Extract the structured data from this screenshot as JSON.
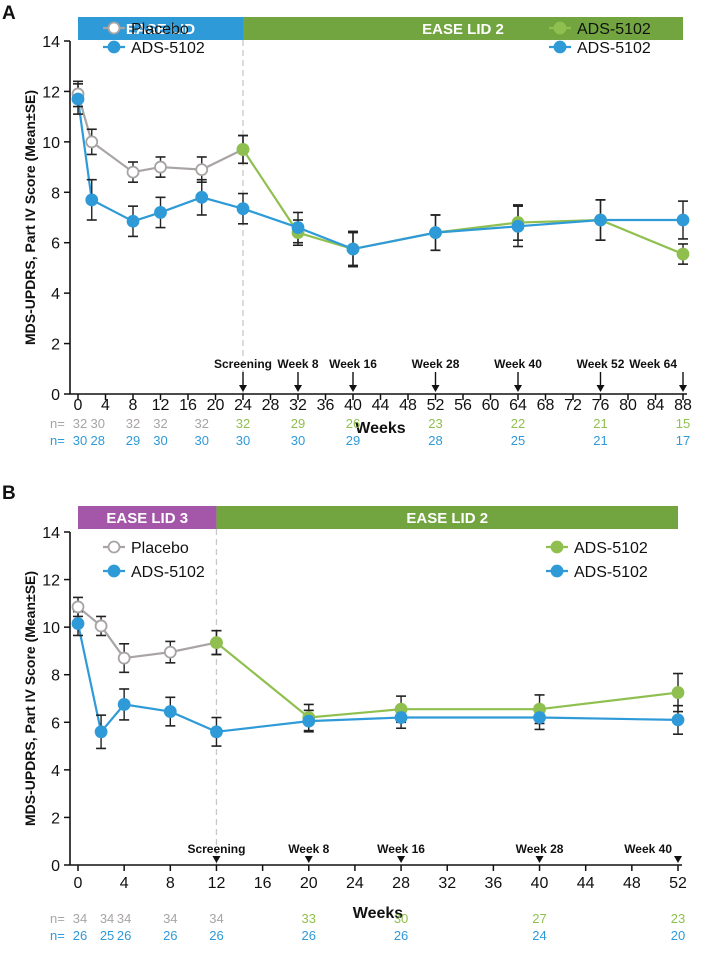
{
  "chart_data": [
    {
      "panel_label": "A",
      "type": "line",
      "ylabel": "MDS-UPDRS, Part IV Score (Mean±SE)",
      "xlabel": "Weeks",
      "ylim": [
        0,
        14
      ],
      "yticks": [
        0,
        2,
        4,
        6,
        8,
        10,
        12,
        14
      ],
      "xlim": [
        0,
        88
      ],
      "xticks": [
        0,
        4,
        8,
        12,
        16,
        20,
        24,
        28,
        32,
        36,
        40,
        44,
        48,
        52,
        56,
        60,
        64,
        68,
        72,
        76,
        80,
        84,
        88
      ],
      "phase_divider_x": 24,
      "phases": [
        {
          "label": "EASE LID",
          "start": 0,
          "end": 24,
          "color": "#2f9ad8"
        },
        {
          "label": "EASE LID 2",
          "start": 24,
          "end": 88,
          "color": "#72a53f"
        }
      ],
      "legend_left": [
        {
          "name": "Placebo",
          "style": "hollow",
          "color": "#a8a4a3"
        },
        {
          "name": "ADS-5102",
          "style": "blue",
          "color": "#2f9ad8"
        }
      ],
      "legend_right": [
        {
          "name": "ADS-5102",
          "style": "green",
          "color": "#8fc04f"
        },
        {
          "name": "ADS-5102",
          "style": "blue",
          "color": "#2f9ad8"
        }
      ],
      "visit_markers": [
        {
          "label": "Screening",
          "x": 24
        },
        {
          "label": "Week 8",
          "x": 32
        },
        {
          "label": "Week 16",
          "x": 40
        },
        {
          "label": "Week 28",
          "x": 52
        },
        {
          "label": "Week 40",
          "x": 64
        },
        {
          "label": "Week 52",
          "x": 76
        },
        {
          "label": "Week 64",
          "x": 88
        }
      ],
      "series": [
        {
          "style": "placebo",
          "x": [
            0,
            2,
            8,
            12,
            18,
            24
          ],
          "y": [
            11.9,
            10.0,
            8.8,
            9.0,
            8.9,
            9.7
          ],
          "err": [
            0.5,
            0.5,
            0.4,
            0.4,
            0.5,
            0.55
          ]
        },
        {
          "style": "green",
          "x": [
            24,
            32,
            40,
            52,
            64,
            76,
            88
          ],
          "y": [
            9.7,
            6.4,
            5.75,
            6.4,
            6.8,
            6.9,
            5.55
          ],
          "err": [
            0.55,
            0.5,
            0.65,
            0.7,
            0.7,
            0.8,
            0.4
          ]
        },
        {
          "style": "blue",
          "x": [
            0,
            2,
            8,
            12,
            18,
            24,
            32,
            40,
            52,
            64,
            76,
            88
          ],
          "y": [
            11.7,
            7.7,
            6.85,
            7.2,
            7.8,
            7.35,
            6.6,
            5.75,
            6.4,
            6.65,
            6.9,
            6.9
          ],
          "err": [
            0.6,
            0.8,
            0.6,
            0.6,
            0.7,
            0.6,
            0.6,
            0.7,
            0.7,
            0.8,
            0.8,
            0.75
          ]
        }
      ],
      "n_rows": [
        {
          "label": "n=",
          "color": "#a8a4a3",
          "values": [
            {
              "x": 0,
              "v": "32",
              "color": "#a8a4a3"
            },
            {
              "x": 2,
              "v": "30",
              "color": "#a8a4a3"
            },
            {
              "x": 8,
              "v": "32",
              "color": "#a8a4a3"
            },
            {
              "x": 12,
              "v": "32",
              "color": "#a8a4a3"
            },
            {
              "x": 18,
              "v": "32",
              "color": "#a8a4a3"
            },
            {
              "x": 24,
              "v": "32",
              "color": "#8fc04f"
            },
            {
              "x": 32,
              "v": "29",
              "color": "#8fc04f"
            },
            {
              "x": 40,
              "v": "26",
              "color": "#8fc04f"
            },
            {
              "x": 52,
              "v": "23",
              "color": "#8fc04f"
            },
            {
              "x": 64,
              "v": "22",
              "color": "#8fc04f"
            },
            {
              "x": 76,
              "v": "21",
              "color": "#8fc04f"
            },
            {
              "x": 88,
              "v": "15",
              "color": "#8fc04f"
            }
          ]
        },
        {
          "label": "n=",
          "color": "#2f9ad8",
          "values": [
            {
              "x": 0,
              "v": "30",
              "color": "#2f9ad8"
            },
            {
              "x": 2,
              "v": "28",
              "color": "#2f9ad8"
            },
            {
              "x": 8,
              "v": "29",
              "color": "#2f9ad8"
            },
            {
              "x": 12,
              "v": "30",
              "color": "#2f9ad8"
            },
            {
              "x": 18,
              "v": "30",
              "color": "#2f9ad8"
            },
            {
              "x": 24,
              "v": "30",
              "color": "#2f9ad8"
            },
            {
              "x": 32,
              "v": "30",
              "color": "#2f9ad8"
            },
            {
              "x": 40,
              "v": "29",
              "color": "#2f9ad8"
            },
            {
              "x": 52,
              "v": "28",
              "color": "#2f9ad8"
            },
            {
              "x": 64,
              "v": "25",
              "color": "#2f9ad8"
            },
            {
              "x": 76,
              "v": "21",
              "color": "#2f9ad8"
            },
            {
              "x": 88,
              "v": "17",
              "color": "#2f9ad8"
            }
          ]
        }
      ]
    },
    {
      "panel_label": "B",
      "type": "line",
      "ylabel": "MDS-UPDRS, Part IV Score (Mean±SE)",
      "xlabel": "Weeks",
      "ylim": [
        0,
        14
      ],
      "yticks": [
        0,
        2,
        4,
        6,
        8,
        10,
        12,
        14
      ],
      "xlim": [
        0,
        52
      ],
      "xticks": [
        0,
        4,
        8,
        12,
        16,
        20,
        24,
        28,
        32,
        36,
        40,
        44,
        48,
        52
      ],
      "phase_divider_x": 12,
      "phases": [
        {
          "label": "EASE LID 3",
          "start": 0,
          "end": 12,
          "color": "#a456a8"
        },
        {
          "label": "EASE LID 2",
          "start": 12,
          "end": 52,
          "color": "#72a53f"
        }
      ],
      "legend_left": [
        {
          "name": "Placebo",
          "style": "hollow",
          "color": "#a8a4a3"
        },
        {
          "name": "ADS-5102",
          "style": "blue",
          "color": "#2f9ad8"
        }
      ],
      "legend_right": [
        {
          "name": "ADS-5102",
          "style": "green",
          "color": "#8fc04f"
        },
        {
          "name": "ADS-5102",
          "style": "blue",
          "color": "#2f9ad8"
        }
      ],
      "visit_markers": [
        {
          "label": "Screening",
          "x": 12
        },
        {
          "label": "Week 8",
          "x": 20
        },
        {
          "label": "Week 16",
          "x": 28
        },
        {
          "label": "Week 28",
          "x": 40
        },
        {
          "label": "Week 40",
          "x": 52
        }
      ],
      "series": [
        {
          "style": "placebo",
          "x": [
            0,
            2,
            4,
            8,
            12
          ],
          "y": [
            10.85,
            10.05,
            8.7,
            8.95,
            9.35
          ],
          "err": [
            0.4,
            0.4,
            0.6,
            0.45,
            0.5
          ]
        },
        {
          "style": "green",
          "x": [
            12,
            20,
            28,
            40,
            52
          ],
          "y": [
            9.35,
            6.2,
            6.55,
            6.55,
            7.25
          ],
          "err": [
            0.5,
            0.55,
            0.55,
            0.6,
            0.8
          ]
        },
        {
          "style": "blue",
          "x": [
            0,
            2,
            4,
            8,
            12,
            20,
            28,
            40,
            52
          ],
          "y": [
            10.15,
            5.6,
            6.75,
            6.45,
            5.6,
            6.05,
            6.2,
            6.2,
            6.1
          ],
          "err": [
            0.5,
            0.7,
            0.65,
            0.6,
            0.6,
            0.45,
            0.45,
            0.5,
            0.6
          ]
        }
      ],
      "n_rows": [
        {
          "label": "n=",
          "color": "#a8a4a3",
          "values": [
            {
              "x": 0,
              "v": "34",
              "color": "#a8a4a3"
            },
            {
              "x": 2,
              "v": "34",
              "color": "#a8a4a3"
            },
            {
              "x": 4,
              "v": "34",
              "color": "#a8a4a3"
            },
            {
              "x": 8,
              "v": "34",
              "color": "#a8a4a3"
            },
            {
              "x": 12,
              "v": "34",
              "color": "#a8a4a3"
            },
            {
              "x": 20,
              "v": "33",
              "color": "#8fc04f"
            },
            {
              "x": 28,
              "v": "30",
              "color": "#8fc04f"
            },
            {
              "x": 40,
              "v": "27",
              "color": "#8fc04f"
            },
            {
              "x": 52,
              "v": "23",
              "color": "#8fc04f"
            }
          ]
        },
        {
          "label": "n=",
          "color": "#2f9ad8",
          "values": [
            {
              "x": 0,
              "v": "26",
              "color": "#2f9ad8"
            },
            {
              "x": 2,
              "v": "25",
              "color": "#2f9ad8"
            },
            {
              "x": 4,
              "v": "26",
              "color": "#2f9ad8"
            },
            {
              "x": 8,
              "v": "26",
              "color": "#2f9ad8"
            },
            {
              "x": 12,
              "v": "26",
              "color": "#2f9ad8"
            },
            {
              "x": 20,
              "v": "26",
              "color": "#2f9ad8"
            },
            {
              "x": 28,
              "v": "26",
              "color": "#2f9ad8"
            },
            {
              "x": 40,
              "v": "24",
              "color": "#2f9ad8"
            },
            {
              "x": 52,
              "v": "20",
              "color": "#2f9ad8"
            }
          ]
        }
      ]
    }
  ]
}
